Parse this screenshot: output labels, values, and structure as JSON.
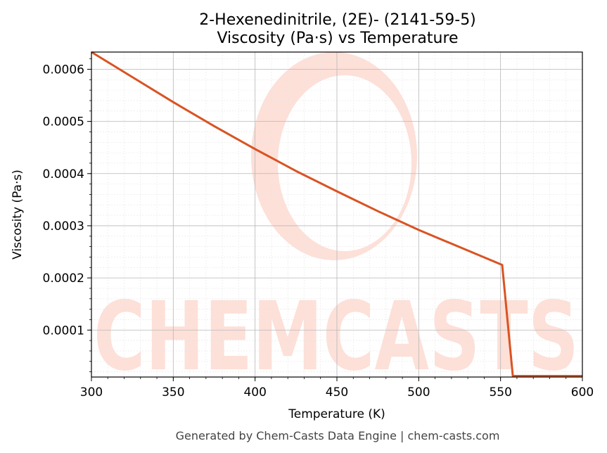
{
  "chart_data": {
    "type": "line",
    "title": "2-Hexenedinitrile, (2E)- (2141-59-5)",
    "subtitle": "Viscosity (Pa·s) vs Temperature",
    "xlabel": "Temperature (K)",
    "ylabel": "Viscosity (Pa·s)",
    "xlim": [
      300,
      600
    ],
    "ylim": [
      1e-05,
      0.000633
    ],
    "x_ticks": [
      300,
      350,
      400,
      450,
      500,
      550,
      600
    ],
    "y_ticks": [
      0.0001,
      0.0002,
      0.0003,
      0.0004,
      0.0005,
      0.0006
    ],
    "x_tick_labels": [
      "300",
      "350",
      "400",
      "450",
      "500",
      "550",
      "600"
    ],
    "y_tick_labels": [
      "0.0001",
      "0.0002",
      "0.0003",
      "0.0004",
      "0.0005",
      "0.0006"
    ],
    "grid": true,
    "line_color": "#d95323",
    "series": [
      {
        "x": [
          300,
          325,
          350,
          375,
          400,
          425,
          450,
          475,
          500,
          525,
          551,
          557.5,
          600
        ],
        "values": [
          0.000633,
          0.000585,
          0.000537,
          0.000491,
          0.000447,
          0.000405,
          0.000366,
          0.000328,
          0.000292,
          0.000259,
          0.000225,
          1.2e-05,
          1.2e-05
        ]
      }
    ]
  },
  "watermark": "CHEMCASTS",
  "footer": "Generated by Chem-Casts Data Engine | chem-casts.com"
}
